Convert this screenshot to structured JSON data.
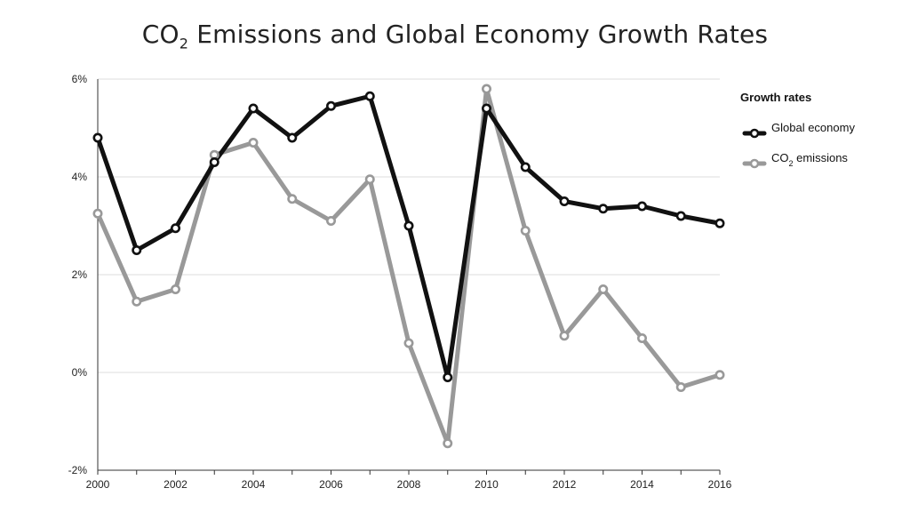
{
  "chart_data": {
    "type": "line",
    "title": "CO₂ Emissions and Global Economy Growth Rates",
    "xlabel": "",
    "ylabel": "",
    "x": [
      2000,
      2001,
      2002,
      2003,
      2004,
      2005,
      2006,
      2007,
      2008,
      2009,
      2010,
      2011,
      2012,
      2013,
      2014,
      2015,
      2016
    ],
    "x_ticks": [
      2000,
      2002,
      2004,
      2006,
      2008,
      2010,
      2012,
      2014,
      2016
    ],
    "y_ticks": [
      -2,
      0,
      2,
      4,
      6
    ],
    "y_tick_labels": [
      "-2%",
      "0%",
      "2%",
      "4%",
      "6%"
    ],
    "ylim": [
      -2,
      6
    ],
    "xlim": [
      2000,
      2016
    ],
    "grid": "horizontal",
    "legend": {
      "title": "Growth rates",
      "placement": "right"
    },
    "series": [
      {
        "name": "Global economy",
        "color": "#111111",
        "values": [
          4.8,
          2.5,
          2.95,
          4.3,
          5.4,
          4.8,
          5.45,
          5.65,
          3.0,
          -0.1,
          5.4,
          4.2,
          3.5,
          3.35,
          3.4,
          3.2,
          3.05
        ]
      },
      {
        "name": "CO₂ emissions",
        "color": "#999999",
        "values": [
          3.25,
          1.45,
          1.7,
          4.45,
          4.7,
          3.55,
          3.1,
          3.95,
          0.6,
          -1.45,
          5.8,
          2.9,
          0.75,
          1.7,
          0.7,
          -0.3,
          -0.05
        ]
      }
    ]
  }
}
